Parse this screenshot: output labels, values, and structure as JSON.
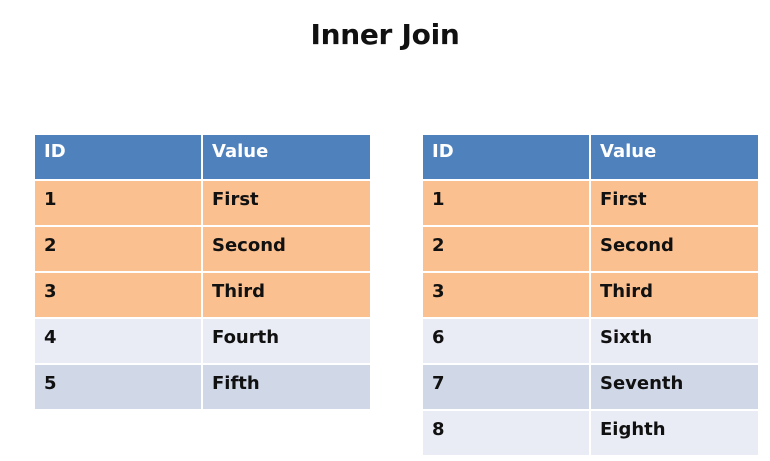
{
  "title": "Inner Join",
  "colors": {
    "header": "#4f81bd",
    "matched_row": "#fac090",
    "row_light": "#e9ebf5",
    "row_dark": "#d0d8e8"
  },
  "left_table": {
    "headers": [
      "ID",
      "Value"
    ],
    "rows": [
      {
        "id": "1",
        "value": "First",
        "matched": true
      },
      {
        "id": "2",
        "value": "Second",
        "matched": true
      },
      {
        "id": "3",
        "value": "Third",
        "matched": true
      },
      {
        "id": "4",
        "value": "Fourth",
        "matched": false
      },
      {
        "id": "5",
        "value": "Fifth",
        "matched": false
      }
    ]
  },
  "right_table": {
    "headers": [
      "ID",
      "Value"
    ],
    "rows": [
      {
        "id": "1",
        "value": "First",
        "matched": true
      },
      {
        "id": "2",
        "value": "Second",
        "matched": true
      },
      {
        "id": "3",
        "value": "Third",
        "matched": true
      },
      {
        "id": "6",
        "value": "Sixth",
        "matched": false
      },
      {
        "id": "7",
        "value": "Seventh",
        "matched": false
      },
      {
        "id": "8",
        "value": "Eighth",
        "matched": false
      }
    ]
  }
}
